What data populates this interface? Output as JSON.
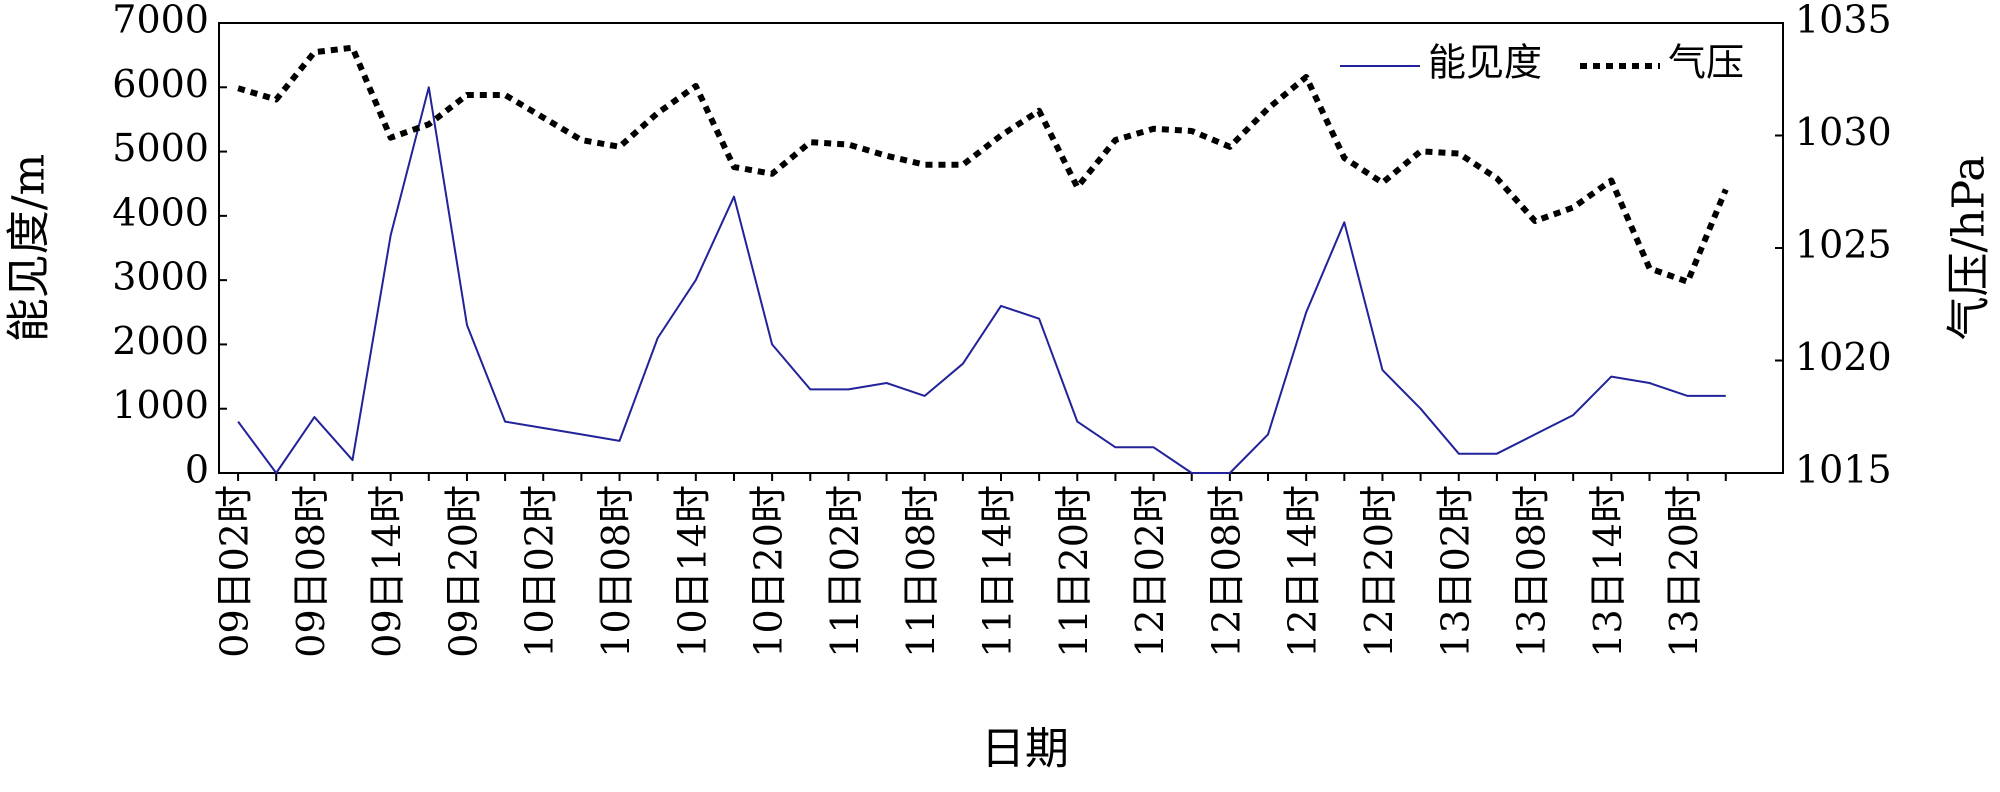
{
  "chart_data": {
    "type": "line",
    "xlabel": "日期",
    "ylabel": "能见度/m",
    "y2label": "气压/hPa",
    "categories": [
      "09日02时",
      null,
      "09日08时",
      null,
      "09日14时",
      null,
      "09日20时",
      null,
      "10日02时",
      null,
      "10日08时",
      null,
      "10日14时",
      null,
      "10日20时",
      null,
      "11日02时",
      null,
      "11日08时",
      null,
      "11日14时",
      null,
      "11日20时",
      null,
      "12日02时",
      null,
      "12日08时",
      null,
      "12日14时",
      null,
      "12日20时",
      null,
      "13日02时",
      null,
      "13日08时",
      null,
      "13日14时",
      null,
      "13日20时",
      null
    ],
    "series": [
      {
        "name": "能见度",
        "color": "#22229a",
        "style": "solid",
        "axis": "y",
        "values": [
          800,
          0,
          870,
          200,
          3700,
          6000,
          2300,
          800,
          700,
          600,
          500,
          2100,
          3000,
          4300,
          2000,
          1300,
          1300,
          1400,
          1200,
          1700,
          2600,
          2400,
          800,
          400,
          400,
          0,
          0,
          600,
          2500,
          3900,
          1600,
          1000,
          300,
          300,
          600,
          900,
          1500,
          1400,
          1200,
          1200
        ]
      },
      {
        "name": "气压",
        "color": "#000000",
        "style": "dotted",
        "axis": "y2",
        "values": [
          1032.1,
          1031.6,
          1033.7,
          1033.9,
          1029.9,
          1030.5,
          1031.8,
          1031.8,
          1030.8,
          1029.8,
          1029.5,
          1031.0,
          1032.2,
          1028.6,
          1028.3,
          1029.7,
          1029.6,
          1029.1,
          1028.7,
          1028.7,
          1030.0,
          1031.1,
          1027.7,
          1029.8,
          1030.3,
          1030.2,
          1029.5,
          1031.2,
          1032.6,
          1029.0,
          1027.9,
          1029.3,
          1029.2,
          1028.1,
          1026.2,
          1026.8,
          1028.0,
          1024.1,
          1023.5,
          1027.6
        ]
      }
    ],
    "ylim": [
      0,
      7000
    ],
    "yticks": [
      0,
      1000,
      2000,
      3000,
      4000,
      5000,
      6000,
      7000
    ],
    "y2lim": [
      1015,
      1035
    ],
    "y2ticks": [
      1015,
      1020,
      1025,
      1030,
      1035
    ],
    "legend": "top-right",
    "grid": false
  }
}
